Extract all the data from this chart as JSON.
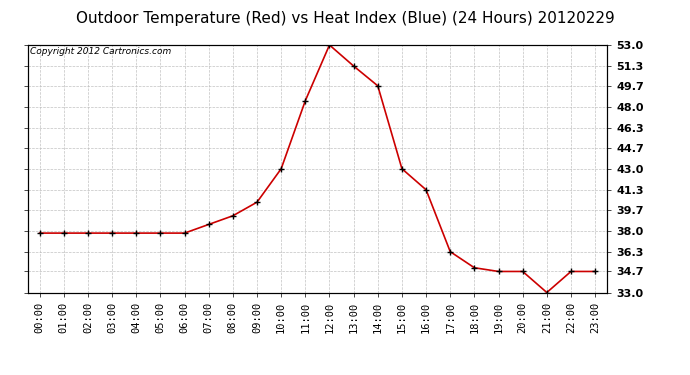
{
  "title": "Outdoor Temperature (Red) vs Heat Index (Blue) (24 Hours) 20120229",
  "copyright_text": "Copyright 2012 Cartronics.com",
  "x_labels": [
    "00:00",
    "01:00",
    "02:00",
    "03:00",
    "04:00",
    "05:00",
    "06:00",
    "07:00",
    "08:00",
    "09:00",
    "10:00",
    "11:00",
    "12:00",
    "13:00",
    "14:00",
    "15:00",
    "16:00",
    "17:00",
    "18:00",
    "19:00",
    "20:00",
    "21:00",
    "22:00",
    "23:00"
  ],
  "temp_values": [
    37.8,
    37.8,
    37.8,
    37.8,
    37.8,
    37.8,
    37.8,
    38.5,
    39.2,
    40.3,
    43.0,
    48.5,
    53.0,
    51.3,
    49.7,
    43.0,
    41.3,
    36.3,
    35.0,
    34.7,
    34.7,
    33.0,
    34.7,
    34.7
  ],
  "temp_color": "#cc0000",
  "ylim_min": 33.0,
  "ylim_max": 53.0,
  "yticks": [
    33.0,
    34.7,
    36.3,
    38.0,
    39.7,
    41.3,
    43.0,
    44.7,
    46.3,
    48.0,
    49.7,
    51.3,
    53.0
  ],
  "ytick_labels": [
    "33.0",
    "34.7",
    "36.3",
    "38.0",
    "39.7",
    "41.3",
    "43.0",
    "44.7",
    "46.3",
    "48.0",
    "49.7",
    "51.3",
    "53.0"
  ],
  "background_color": "#ffffff",
  "grid_color": "#bbbbbb",
  "title_fontsize": 11,
  "copyright_fontsize": 6.5,
  "tick_fontsize": 7.5,
  "ytick_fontsize": 8.0
}
